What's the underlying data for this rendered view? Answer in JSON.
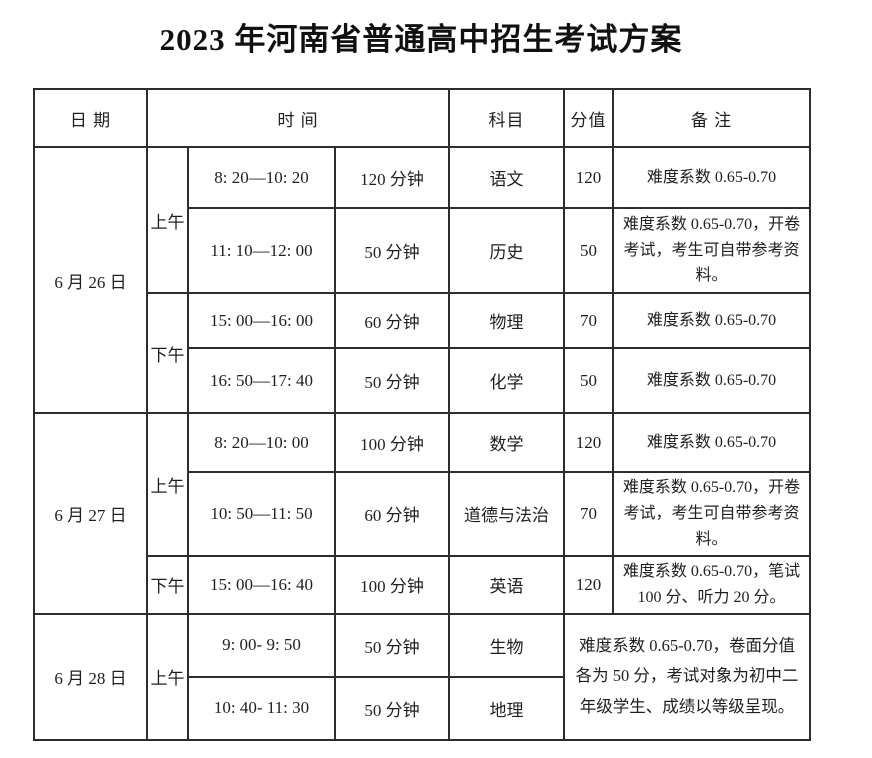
{
  "title": "2023 年河南省普通高中招生考试方案",
  "table": {
    "headers": {
      "date": "日 期",
      "time": "时 间",
      "subject": "科目",
      "score": "分值",
      "remark": "备 注"
    },
    "dates": [
      "6 月 26 日",
      "6 月 27 日",
      "6 月 28 日"
    ],
    "rows": [
      {
        "period": "上午",
        "time": "8: 20—10: 20",
        "duration": "120 分钟",
        "subject": "语文",
        "score": "120",
        "remark": "难度系数 0.65-0.70"
      },
      {
        "time": "11: 10—12: 00",
        "duration": "50 分钟",
        "subject": "历史",
        "score": "50",
        "remark": "难度系数 0.65-0.70，开卷考试，考生可自带参考资料。"
      },
      {
        "period": "下午",
        "time": "15: 00—16: 00",
        "duration": "60 分钟",
        "subject": "物理",
        "score": "70",
        "remark": "难度系数 0.65-0.70"
      },
      {
        "time": "16: 50—17: 40",
        "duration": "50 分钟",
        "subject": "化学",
        "score": "50",
        "remark": "难度系数 0.65-0.70"
      },
      {
        "period": "上午",
        "time": "8: 20—10: 00",
        "duration": "100 分钟",
        "subject": "数学",
        "score": "120",
        "remark": "难度系数 0.65-0.70"
      },
      {
        "time": "10: 50—11: 50",
        "duration": "60 分钟",
        "subject": "道德与法治",
        "score": "70",
        "remark": "难度系数 0.65-0.70，开卷考试，考生可自带参考资料。"
      },
      {
        "period": "下午",
        "time": "15: 00—16: 40",
        "duration": "100 分钟",
        "subject": "英语",
        "score": "120",
        "remark": "难度系数 0.65-0.70，笔试 100 分、听力 20 分。"
      },
      {
        "period": "上午",
        "time": "9: 00- 9: 50",
        "duration": "50 分钟",
        "subject": "生物",
        "remark": "难度系数 0.65-0.70，卷面分值各为 50 分，考试对象为初中二年级学生、成绩以等级呈现。"
      },
      {
        "time": "10: 40- 11: 30",
        "duration": "50 分钟",
        "subject": "地理"
      }
    ]
  }
}
